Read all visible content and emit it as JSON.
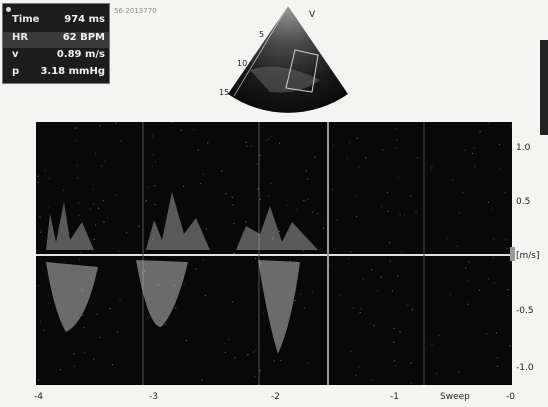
{
  "measurements": {
    "time": {
      "label": "Time",
      "value": "974 ms"
    },
    "hr": {
      "label": "HR",
      "value": "62 BPM"
    },
    "v": {
      "label": "v",
      "value": "0.89 m/s"
    },
    "p": {
      "label": "p",
      "value": "3.18 mmHg"
    }
  },
  "case_id": "56-2013770",
  "sector": {
    "marker": "V",
    "depths": [
      "5",
      "10",
      "15"
    ]
  },
  "doppler": {
    "velocity_unit": "[m/s]",
    "velocity_ticks": [
      "1.0",
      "0.5",
      "-0.5",
      "-1.0"
    ],
    "time_ticks": [
      "-4",
      "-3",
      "-2",
      "-1",
      "-0"
    ],
    "sweep_label": "Sweep"
  },
  "colors": {
    "background": "#f4f4f2",
    "trace": "#cfcfcf",
    "panel": "#1c1c1c"
  }
}
